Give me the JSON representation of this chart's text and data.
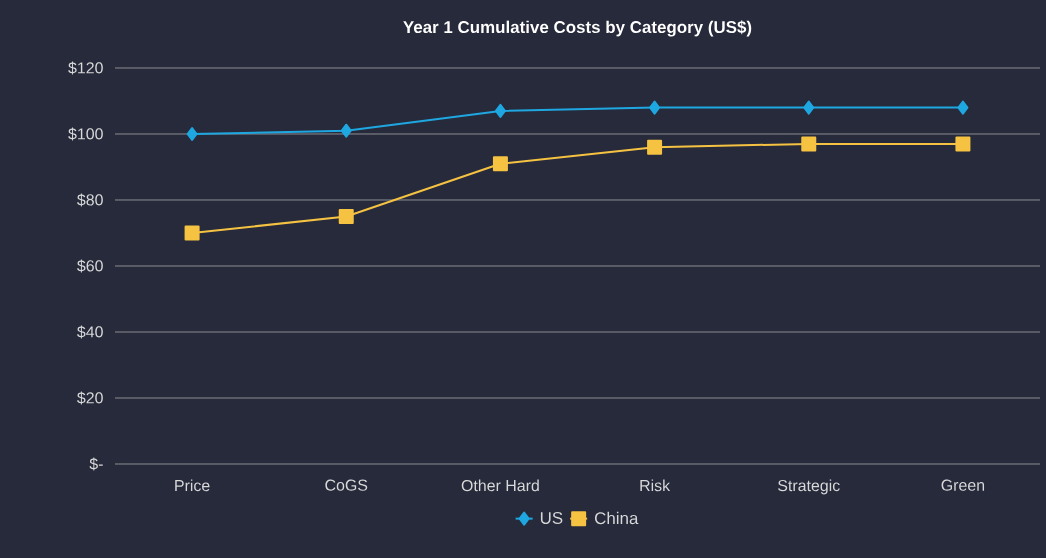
{
  "chart_data": {
    "type": "line",
    "title": "Year 1 Cumulative Costs by Category (US$)",
    "categories": [
      "Price",
      "CoGS",
      "Other Hard",
      "Risk",
      "Strategic",
      "Green"
    ],
    "series": [
      {
        "name": "US",
        "color": "#1ea7e1",
        "marker": "diamond",
        "values": [
          100,
          101,
          107,
          108,
          108,
          108
        ]
      },
      {
        "name": "China",
        "color": "#f5c242",
        "marker": "square",
        "values": [
          70,
          75,
          91,
          96,
          97,
          97
        ]
      }
    ],
    "ylim": [
      0,
      120
    ],
    "yticks": [
      {
        "value": 0,
        "label": "$-"
      },
      {
        "value": 20,
        "label": "$20"
      },
      {
        "value": 40,
        "label": "$40"
      },
      {
        "value": 60,
        "label": "$60"
      },
      {
        "value": 80,
        "label": "$80"
      },
      {
        "value": 100,
        "label": "$100"
      },
      {
        "value": 120,
        "label": "$120"
      }
    ],
    "grid": "y",
    "legend": "bottom"
  }
}
